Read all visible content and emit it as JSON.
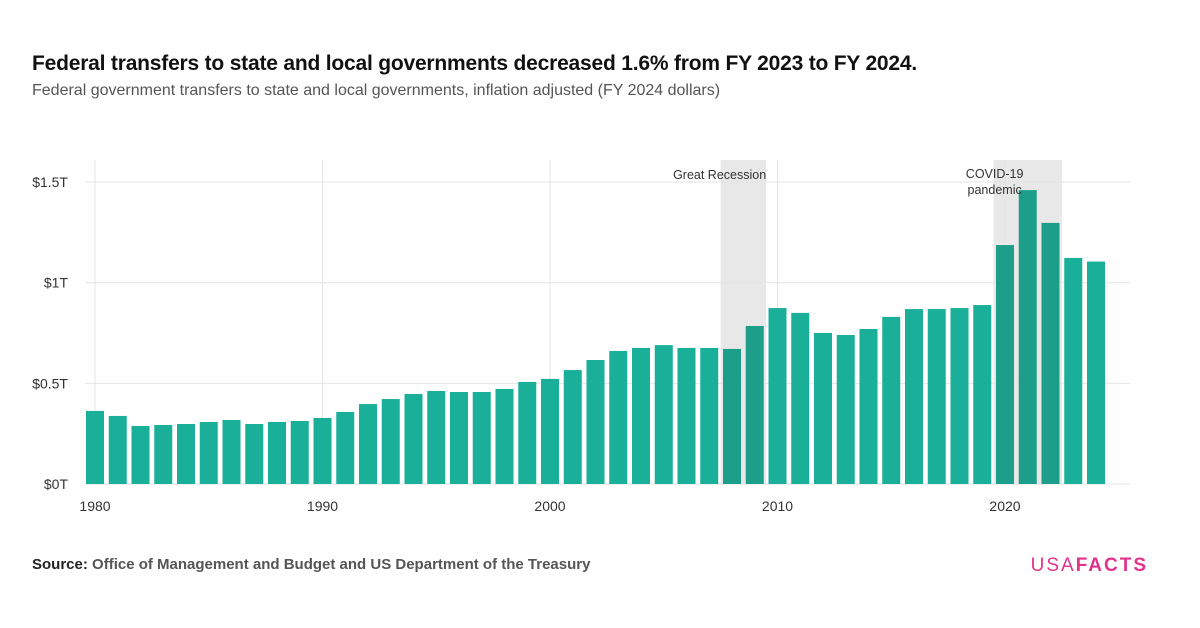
{
  "title": "Federal transfers to state and local governments decreased 1.6% from FY 2023 to FY 2024.",
  "subtitle": "Federal government transfers to state and local governments, inflation adjusted (FY 2024 dollars)",
  "source_label": "Source:",
  "source_text": "Office of Management and Budget and US Department of the Treasury",
  "logo": {
    "part1": "USA",
    "part2": "FACTS"
  },
  "colors": {
    "bar": "#1aaf98",
    "bar_shaded": "#1d9e8a",
    "shade": "#e8e8e8",
    "logo": "#e0338b"
  },
  "chart_data": {
    "type": "bar",
    "title": "Federal transfers to state and local governments decreased 1.6% from FY 2023 to FY 2024.",
    "xlabel": "",
    "ylabel": "",
    "ylim": [
      0,
      1.5
    ],
    "unit": "trillions of FY 2024 dollars",
    "grid": true,
    "x": [
      1980,
      1981,
      1982,
      1983,
      1984,
      1985,
      1986,
      1987,
      1988,
      1989,
      1990,
      1991,
      1992,
      1993,
      1994,
      1995,
      1996,
      1997,
      1998,
      1999,
      2000,
      2001,
      2002,
      2003,
      2004,
      2005,
      2006,
      2007,
      2008,
      2009,
      2010,
      2011,
      2012,
      2013,
      2014,
      2015,
      2016,
      2017,
      2018,
      2019,
      2020,
      2021,
      2022,
      2023,
      2024
    ],
    "values": [
      0.363,
      0.338,
      0.288,
      0.293,
      0.298,
      0.308,
      0.318,
      0.298,
      0.308,
      0.313,
      0.328,
      0.358,
      0.397,
      0.422,
      0.447,
      0.462,
      0.457,
      0.457,
      0.472,
      0.507,
      0.522,
      0.566,
      0.616,
      0.661,
      0.676,
      0.69,
      0.676,
      0.676,
      0.671,
      0.785,
      0.874,
      0.85,
      0.75,
      0.74,
      0.77,
      0.83,
      0.869,
      0.869,
      0.874,
      0.889,
      1.187,
      1.46,
      1.297,
      1.123,
      1.105
    ],
    "y_ticks": [
      {
        "v": 0,
        "label": "$0T"
      },
      {
        "v": 0.5,
        "label": "$0.5T"
      },
      {
        "v": 1,
        "label": "$1T"
      },
      {
        "v": 1.5,
        "label": "$1.5T"
      }
    ],
    "x_ticks": [
      1980,
      1990,
      2000,
      2010,
      2020
    ],
    "annotations": [
      {
        "label": "Great Recession",
        "from": 2007.5,
        "to": 2009.5
      },
      {
        "label": "COVID-19 pandemic",
        "lines": [
          "COVID-19",
          "pandemic"
        ],
        "from": 2019.5,
        "to": 2022.5
      }
    ]
  }
}
